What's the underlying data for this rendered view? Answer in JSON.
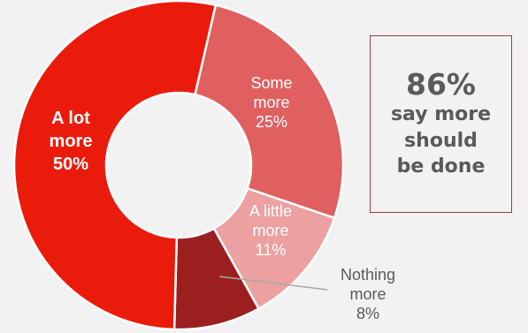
{
  "chart_data": {
    "type": "pie",
    "slices": [
      {
        "name": "Some more",
        "value": 25,
        "label": [
          "Some",
          "more",
          "25%"
        ],
        "color": "#e06060"
      },
      {
        "name": "A little more",
        "value": 11,
        "label": [
          "A little",
          "more",
          "11%"
        ],
        "color": "#eca0a0"
      },
      {
        "name": "Nothing more",
        "value": 8,
        "label": [
          "Nothing",
          "more",
          "8%"
        ],
        "color": "#9c1f1f"
      },
      {
        "name": "A lot more",
        "value": 50,
        "label": [
          "A lot",
          "more",
          "50%"
        ],
        "color": "#ea1b0b"
      }
    ]
  },
  "callout": {
    "value": "86%",
    "lines": [
      "say more",
      "should",
      "be done"
    ],
    "border_color": "#a33a3a",
    "text_color": "#5a5a5a"
  }
}
